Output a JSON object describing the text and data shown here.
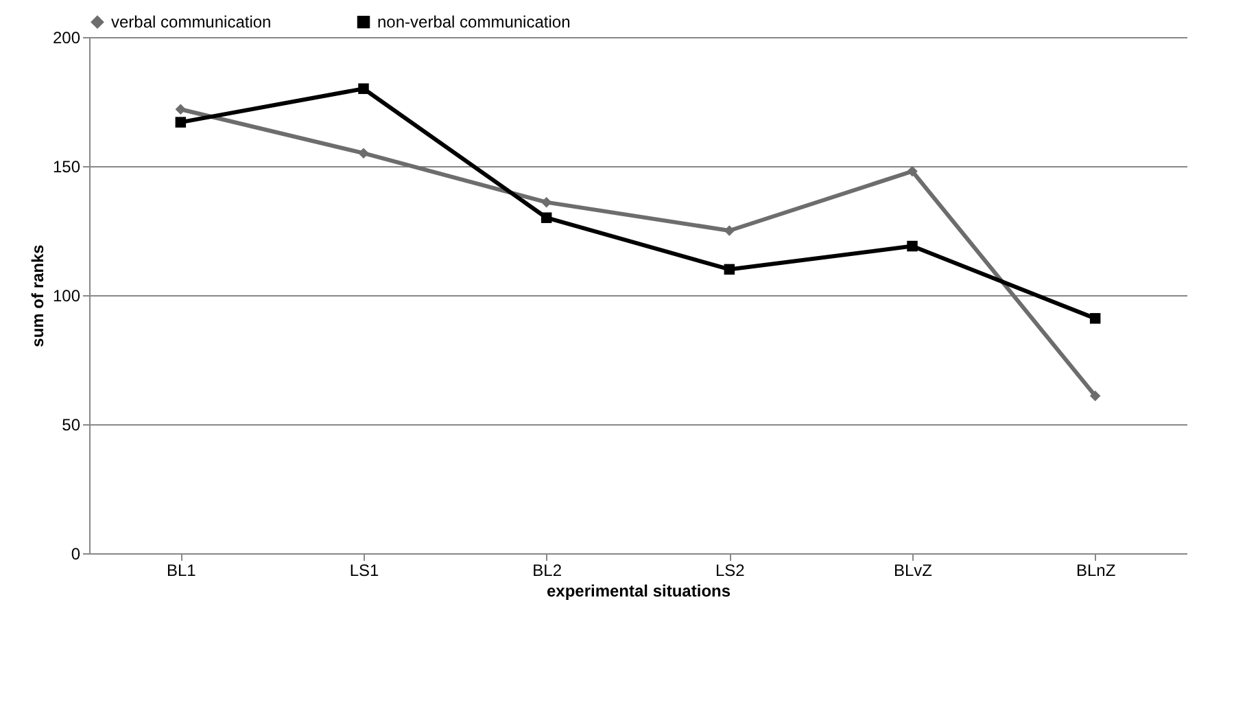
{
  "chart_data": {
    "type": "line",
    "xlabel": "experimental situations",
    "ylabel": "sum of ranks",
    "categories": [
      "BL1",
      "LS1",
      "BL2",
      "LS2",
      "BLvZ",
      "BLnZ"
    ],
    "series": [
      {
        "name": "verbal communication",
        "color": "#6d6d6d",
        "marker": "diamond",
        "values": [
          172,
          155,
          136,
          125,
          148,
          61
        ]
      },
      {
        "name": "non-verbal communication",
        "color": "#000000",
        "marker": "square",
        "values": [
          167,
          180,
          130,
          110,
          119,
          91
        ]
      }
    ],
    "ylim": [
      0,
      200
    ],
    "yticks": [
      0,
      50,
      100,
      150,
      200
    ],
    "grid": "y",
    "legend": "top",
    "line_style": "solid"
  }
}
